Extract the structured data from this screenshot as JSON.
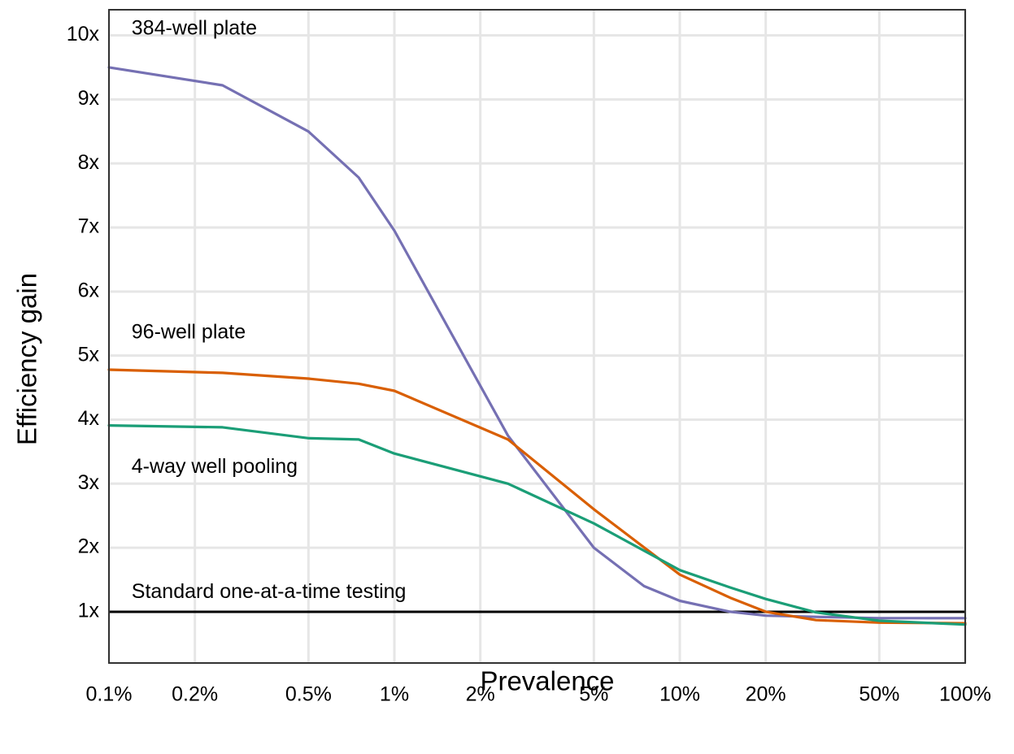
{
  "chart_data": {
    "type": "line",
    "title": "",
    "xlabel": "Prevalence",
    "ylabel": "Efficiency gain",
    "x_scale": "log",
    "xlim": [
      0.1,
      100
    ],
    "ylim": [
      0.2,
      10.4
    ],
    "grid": true,
    "x_ticks": [
      {
        "value": 0.1,
        "label": "0.1%"
      },
      {
        "value": 0.2,
        "label": "0.2%"
      },
      {
        "value": 0.5,
        "label": "0.5%"
      },
      {
        "value": 1,
        "label": "1%"
      },
      {
        "value": 2,
        "label": "2%"
      },
      {
        "value": 5,
        "label": "5%"
      },
      {
        "value": 10,
        "label": "10%"
      },
      {
        "value": 20,
        "label": "20%"
      },
      {
        "value": 50,
        "label": "50%"
      },
      {
        "value": 100,
        "label": "100%"
      }
    ],
    "y_ticks": [
      {
        "value": 1,
        "label": "1x"
      },
      {
        "value": 2,
        "label": "2x"
      },
      {
        "value": 3,
        "label": "3x"
      },
      {
        "value": 4,
        "label": "4x"
      },
      {
        "value": 5,
        "label": "5x"
      },
      {
        "value": 6,
        "label": "6x"
      },
      {
        "value": 7,
        "label": "7x"
      },
      {
        "value": 8,
        "label": "8x"
      },
      {
        "value": 9,
        "label": "9x"
      },
      {
        "value": 10,
        "label": "10x"
      }
    ],
    "series": [
      {
        "name": "384-well plate",
        "color": "#7570b3",
        "x": [
          0.1,
          0.25,
          0.5,
          0.75,
          1,
          2.5,
          5,
          7.5,
          10,
          15,
          20,
          30,
          50,
          100
        ],
        "y": [
          9.5,
          9.22,
          8.5,
          7.78,
          6.95,
          3.75,
          2.0,
          1.4,
          1.17,
          1.0,
          0.94,
          0.92,
          0.9,
          0.9
        ]
      },
      {
        "name": "96-well plate",
        "color": "#d95f02",
        "x": [
          0.1,
          0.25,
          0.5,
          0.75,
          1,
          2.5,
          5,
          10,
          15,
          20,
          30,
          50,
          100
        ],
        "y": [
          4.78,
          4.73,
          4.64,
          4.56,
          4.45,
          3.69,
          2.6,
          1.58,
          1.22,
          1.0,
          0.87,
          0.83,
          0.82
        ]
      },
      {
        "name": "4-way well pooling",
        "color": "#1b9e77",
        "x": [
          0.1,
          0.25,
          0.5,
          0.75,
          1,
          2.5,
          5,
          10,
          15,
          20,
          30,
          50,
          100
        ],
        "y": [
          3.91,
          3.88,
          3.71,
          3.69,
          3.47,
          3.0,
          2.38,
          1.65,
          1.38,
          1.2,
          0.99,
          0.86,
          0.8
        ]
      }
    ],
    "reference_line": {
      "y": 1,
      "label": "Standard one-at-a-time testing",
      "color": "#000000"
    },
    "annotations": [
      {
        "text": "384-well plate",
        "x": 0.12,
        "y": 10.1
      },
      {
        "text": "96-well plate",
        "x": 0.12,
        "y": 5.35
      },
      {
        "text": "4-way well pooling",
        "x": 0.12,
        "y": 3.25
      },
      {
        "text": "Standard one-at-a-time testing",
        "x": 0.12,
        "y": 1.3
      }
    ]
  }
}
